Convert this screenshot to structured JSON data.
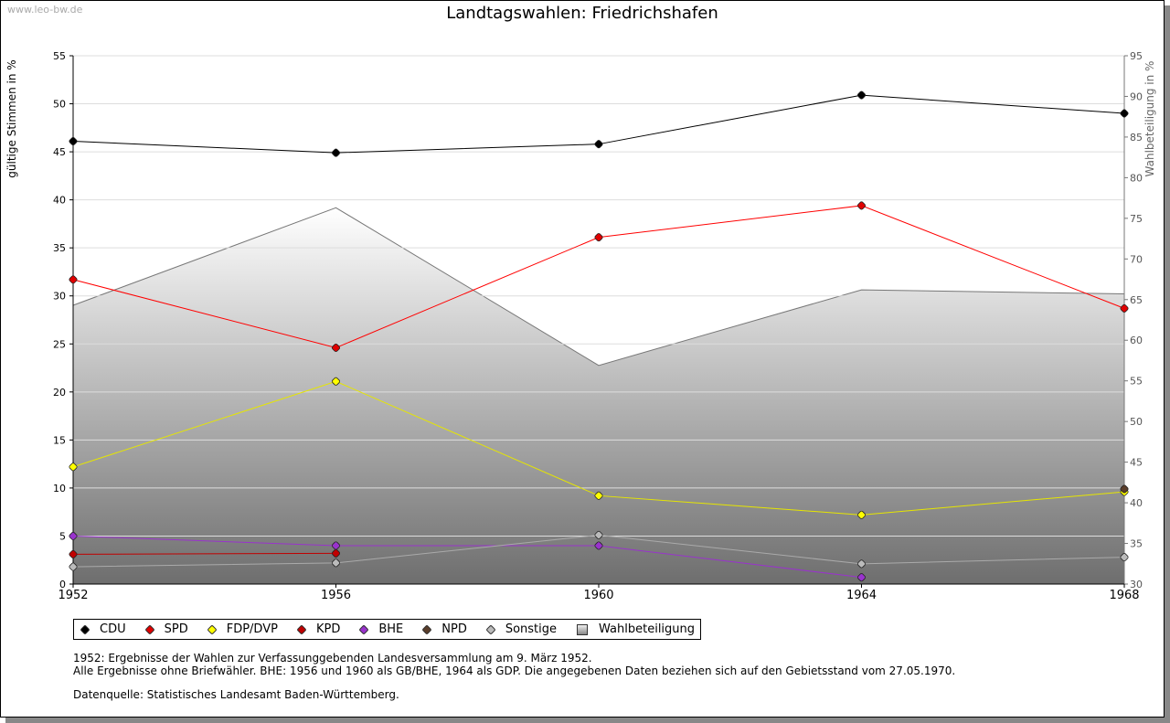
{
  "watermark": "www.leo-bw.de",
  "chart_data": {
    "type": "line",
    "title": "Landtagswahlen: Friedrichshafen",
    "ylabel": "gültige Stimmen in %",
    "y2label": "Wahlbeteiligung in %",
    "x": [
      1952,
      1956,
      1960,
      1964,
      1968
    ],
    "ylim": [
      0,
      55
    ],
    "yticks": [
      0,
      5,
      10,
      15,
      20,
      25,
      30,
      35,
      40,
      45,
      50,
      55
    ],
    "y2lim": [
      30,
      95
    ],
    "y2ticks": [
      30,
      35,
      40,
      45,
      50,
      55,
      60,
      65,
      70,
      75,
      80,
      85,
      90,
      95
    ],
    "grid": true,
    "series": [
      {
        "name": "CDU",
        "color": "#000000",
        "marker": "#000000",
        "values": [
          46.1,
          44.9,
          45.8,
          50.9,
          49.0
        ]
      },
      {
        "name": "SPD",
        "color": "#ff0000",
        "marker": "#e00000",
        "values": [
          31.7,
          24.6,
          36.1,
          39.4,
          28.7
        ]
      },
      {
        "name": "FDP/DVP",
        "color": "#e6e600",
        "marker": "#ffff00",
        "values": [
          12.2,
          21.1,
          9.2,
          7.2,
          9.6
        ]
      },
      {
        "name": "KPD",
        "color": "#c00000",
        "marker": "#c00000",
        "values": [
          3.1,
          3.2,
          null,
          null,
          null
        ]
      },
      {
        "name": "BHE",
        "color": "#9933cc",
        "marker": "#9933cc",
        "values": [
          5.0,
          4.0,
          4.0,
          0.7,
          null
        ]
      },
      {
        "name": "NPD",
        "color": "#5a3e2b",
        "marker": "#5a3e2b",
        "values": [
          null,
          null,
          null,
          null,
          9.9
        ]
      },
      {
        "name": "Sonstige",
        "color": "#aaaaaa",
        "marker": "#bbbbbb",
        "values": [
          1.8,
          2.2,
          5.1,
          2.1,
          2.8
        ]
      }
    ],
    "area": {
      "name": "Wahlbeteiligung",
      "axis": "right",
      "values": [
        64.3,
        76.3,
        56.9,
        66.2,
        65.7
      ]
    },
    "legend_position": "bottom-left"
  },
  "notes": [
    "1952: Ergebnisse der Wahlen zur Verfassunggebenden Landesversammlung am 9. März 1952.",
    "Alle Ergebnisse ohne Briefwähler. BHE: 1956 und 1960 als GB/BHE, 1964 als GDP. Die angegebenen Daten beziehen sich auf den Gebietsstand vom 27.05.1970.",
    "Datenquelle: Statistisches Landesamt Baden-Württemberg."
  ]
}
